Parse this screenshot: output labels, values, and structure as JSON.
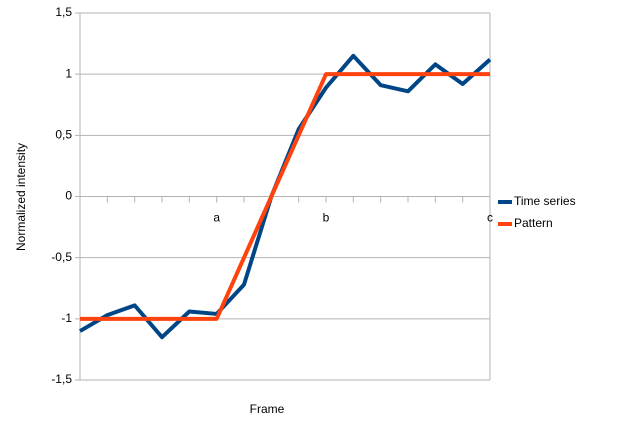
{
  "chart_data": {
    "type": "line",
    "xlabel": "Frame",
    "ylabel": "Normalized intensity",
    "categories": [
      null,
      null,
      null,
      null,
      null,
      "a",
      null,
      null,
      null,
      "b",
      null,
      null,
      null,
      null,
      null,
      "c"
    ],
    "series": [
      {
        "name": "Time series",
        "color": "#004586",
        "values": [
          -1.1,
          -0.97,
          -0.89,
          -1.15,
          -0.94,
          -0.96,
          -0.72,
          0.0,
          0.55,
          0.89,
          1.15,
          0.91,
          0.86,
          1.08,
          0.92,
          1.12
        ]
      },
      {
        "name": "Pattern",
        "color": "#ff420e",
        "values": [
          -1,
          -1,
          -1,
          -1,
          -1,
          -1,
          -0.5,
          0,
          0.5,
          1,
          1,
          1,
          1,
          1,
          1,
          1
        ]
      }
    ],
    "ylim": [
      -1.5,
      1.5
    ],
    "yticks": [
      {
        "value": -1.5,
        "label": "-1,5"
      },
      -1,
      {
        "value": -0.5,
        "label": "-0,5"
      },
      0,
      {
        "value": 0.5,
        "label": "0,5"
      },
      1,
      {
        "value": 1.5,
        "label": "1,5"
      }
    ],
    "grid": true,
    "legend": "right"
  }
}
